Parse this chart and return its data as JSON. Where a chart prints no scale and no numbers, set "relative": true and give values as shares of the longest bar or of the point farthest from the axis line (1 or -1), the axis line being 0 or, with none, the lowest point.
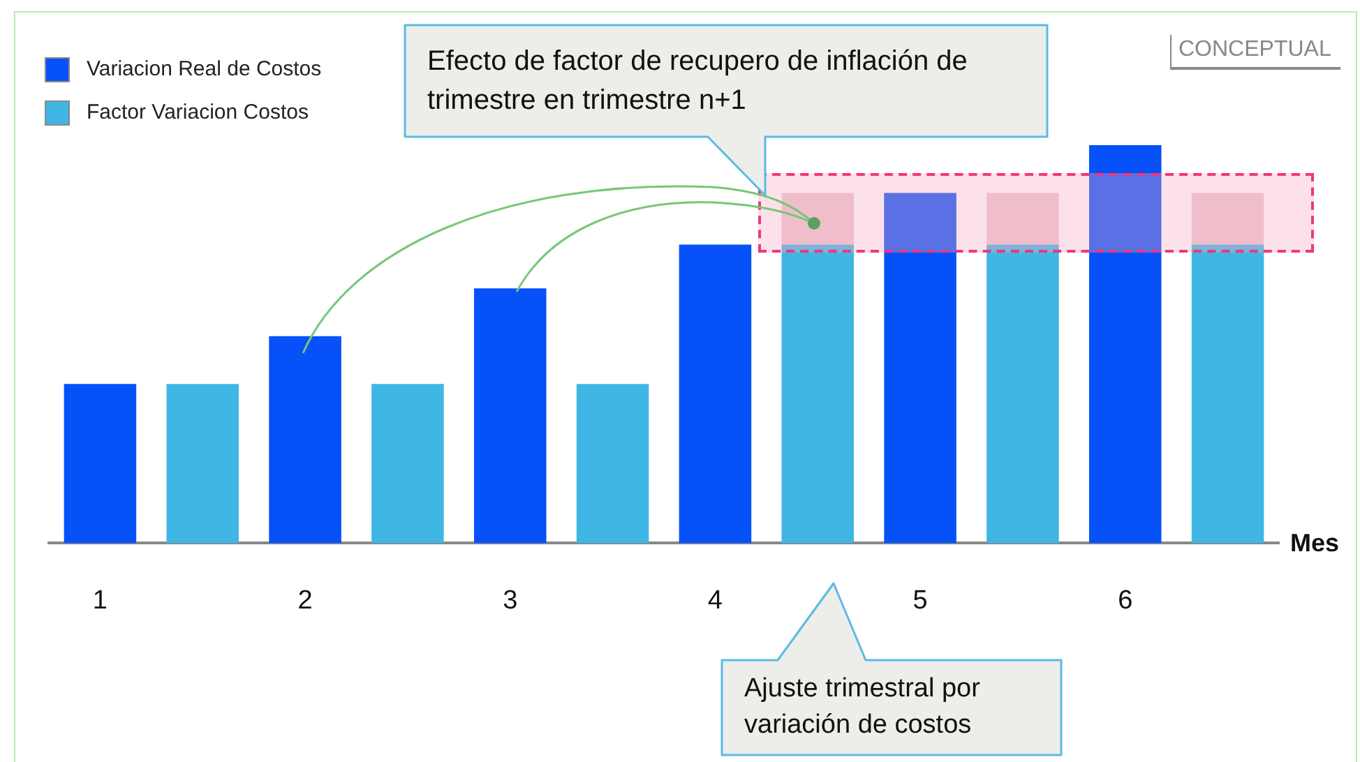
{
  "chart_data": {
    "type": "bar",
    "relative": true,
    "stacked": true,
    "xlabel": "Mes",
    "categories": [
      "1",
      null,
      "2",
      null,
      "3",
      null,
      "4",
      null,
      "5",
      null,
      "6",
      null
    ],
    "series": [
      {
        "name": "Variacion Real de Costos",
        "color": "#0652f8",
        "values": [
          0.4,
          null,
          0.52,
          null,
          0.64,
          null,
          0.75,
          null,
          0.88,
          null,
          1,
          null
        ]
      },
      {
        "name": "Factor Variacion Costos",
        "color": "#3fb6e4",
        "values": [
          null,
          0.4,
          null,
          0.4,
          null,
          0.4,
          null,
          0.75,
          null,
          0.75,
          null,
          0.75
        ]
      },
      {
        "color": "#ecc9cf",
        "values": [
          null,
          null,
          null,
          null,
          null,
          null,
          null,
          0.13,
          null,
          0.13,
          null,
          0.13
        ]
      }
    ],
    "annotations": [
      "Efecto de factor de recupero de inflación de trimestre en trimestre n+1",
      "Ajuste trimestral por variación de costos",
      "CONCEPTUAL"
    ],
    "legend": "top left"
  }
}
